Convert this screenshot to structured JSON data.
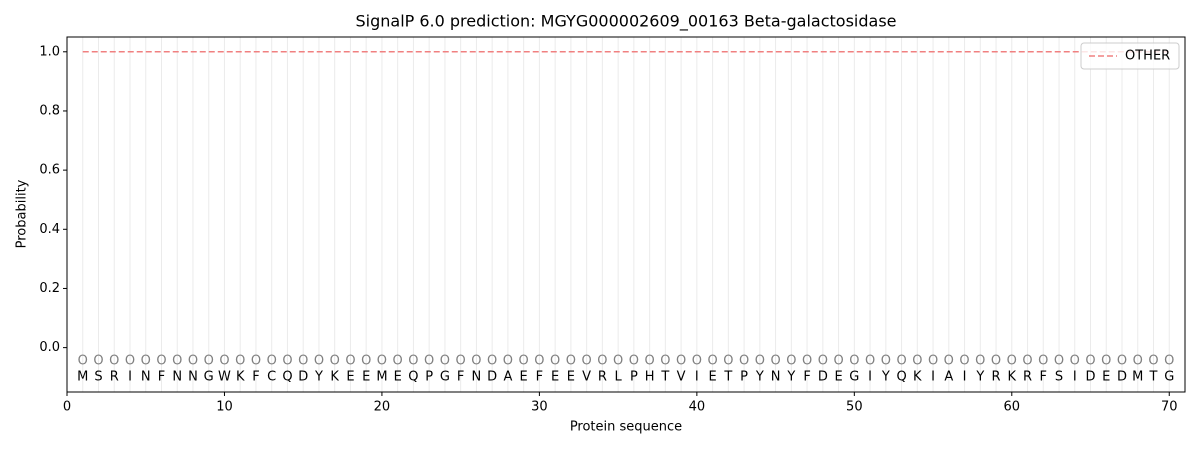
{
  "chart_data": {
    "type": "line",
    "title": "SignalP 6.0 prediction: MGYG000002609_00163 Beta-galactosidase",
    "xlabel": "Protein sequence",
    "ylabel": "Probability",
    "x": [
      1,
      2,
      3,
      4,
      5,
      6,
      7,
      8,
      9,
      10,
      11,
      12,
      13,
      14,
      15,
      16,
      17,
      18,
      19,
      20,
      21,
      22,
      23,
      24,
      25,
      26,
      27,
      28,
      29,
      30,
      31,
      32,
      33,
      34,
      35,
      36,
      37,
      38,
      39,
      40,
      41,
      42,
      43,
      44,
      45,
      46,
      47,
      48,
      49,
      50,
      51,
      52,
      53,
      54,
      55,
      56,
      57,
      58,
      59,
      60,
      61,
      62,
      63,
      64,
      65,
      66,
      67,
      68,
      69,
      70
    ],
    "residues": [
      "M",
      "S",
      "R",
      "I",
      "N",
      "F",
      "N",
      "N",
      "G",
      "W",
      "K",
      "F",
      "C",
      "Q",
      "D",
      "Y",
      "K",
      "E",
      "E",
      "M",
      "E",
      "Q",
      "P",
      "G",
      "F",
      "N",
      "D",
      "A",
      "E",
      "F",
      "E",
      "E",
      "V",
      "R",
      "L",
      "P",
      "H",
      "T",
      "V",
      "I",
      "E",
      "T",
      "P",
      "Y",
      "N",
      "Y",
      "F",
      "D",
      "E",
      "G",
      "I",
      "Y",
      "Q",
      "K",
      "I",
      "A",
      "I",
      "Y",
      "R",
      "K",
      "R",
      "F",
      "S",
      "I",
      "D",
      "E",
      "D",
      "M",
      "T",
      "G"
    ],
    "predicted_labels": [
      "O",
      "O",
      "O",
      "O",
      "O",
      "O",
      "O",
      "O",
      "O",
      "O",
      "O",
      "O",
      "O",
      "O",
      "O",
      "O",
      "O",
      "O",
      "O",
      "O",
      "O",
      "O",
      "O",
      "O",
      "O",
      "O",
      "O",
      "O",
      "O",
      "O",
      "O",
      "O",
      "O",
      "O",
      "O",
      "O",
      "O",
      "O",
      "O",
      "O",
      "O",
      "O",
      "O",
      "O",
      "O",
      "O",
      "O",
      "O",
      "O",
      "O",
      "O",
      "O",
      "O",
      "O",
      "O",
      "O",
      "O",
      "O",
      "O",
      "O",
      "O",
      "O",
      "O",
      "O",
      "O",
      "O",
      "O",
      "O",
      "O",
      "O"
    ],
    "series": [
      {
        "name": "OTHER",
        "color": "#f08080",
        "values": [
          1,
          1,
          1,
          1,
          1,
          1,
          1,
          1,
          1,
          1,
          1,
          1,
          1,
          1,
          1,
          1,
          1,
          1,
          1,
          1,
          1,
          1,
          1,
          1,
          1,
          1,
          1,
          1,
          1,
          1,
          1,
          1,
          1,
          1,
          1,
          1,
          1,
          1,
          1,
          1,
          1,
          1,
          1,
          1,
          1,
          1,
          1,
          1,
          1,
          1,
          1,
          1,
          1,
          1,
          1,
          1,
          1,
          1,
          1,
          1,
          1,
          1,
          1,
          1,
          1,
          1,
          1,
          1,
          1,
          1
        ]
      }
    ],
    "xlim": [
      0,
      71
    ],
    "ylim": [
      -0.15,
      1.05
    ],
    "xticks": [
      0,
      10,
      20,
      30,
      40,
      50,
      60,
      70
    ],
    "yticks": [
      {
        "value": 0,
        "label": "0.0"
      },
      0.2,
      0.4,
      0.6,
      0.8,
      {
        "value": 1,
        "label": "1.0"
      }
    ],
    "legend": "upper right"
  }
}
